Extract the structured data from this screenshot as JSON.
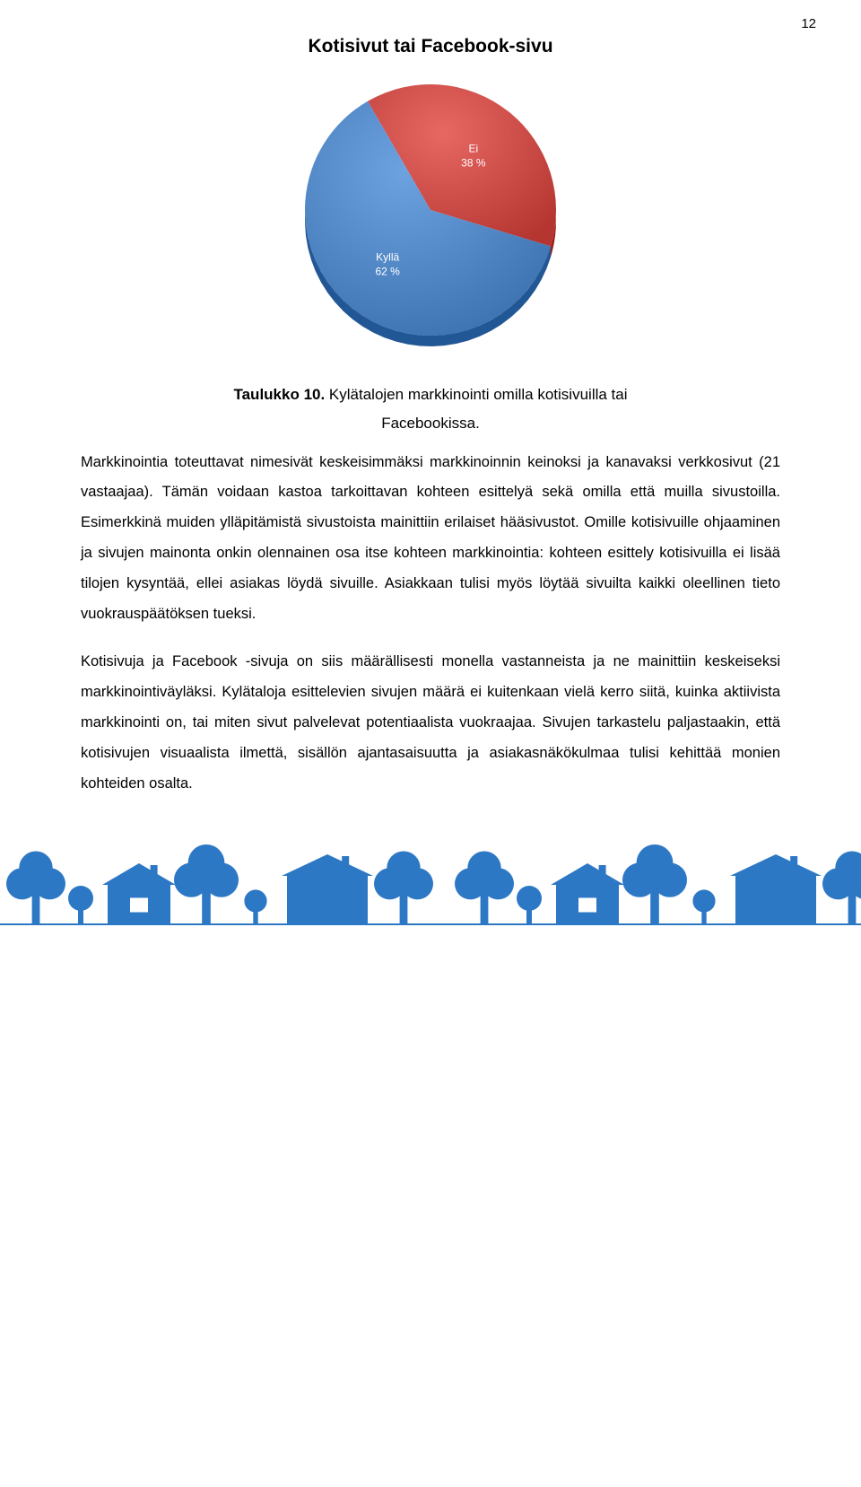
{
  "page_number": "12",
  "chart": {
    "type": "pie",
    "title": "Kotisivut tai Facebook-sivu",
    "background_color": "#ffffff",
    "radius": 140,
    "slices": [
      {
        "label_line1": "Ei",
        "label_line2": "38 %",
        "value": 38,
        "color": "#c44440"
      },
      {
        "label_line1": "Kyllä",
        "label_line2": "62 %",
        "value": 62,
        "color": "#4a7fbd"
      }
    ],
    "label_fontsize": 12,
    "label_color": "#ffffff",
    "start_offset_deg": 30
  },
  "caption": {
    "bold": "Taulukko 10.",
    "text_line1": " Kylätalojen markkinointi omilla kotisivuilla tai",
    "text_line2": "Facebookissa."
  },
  "para1": "Markkinointia toteuttavat nimesivät keskeisimmäksi markkinoinnin keinoksi ja kanavaksi verkkosivut (21 vastaajaa). Tämän voidaan kastoa tarkoittavan kohteen esittelyä sekä omilla että muilla sivustoilla. Esimerkkinä muiden ylläpitämistä sivustoista mainittiin erilaiset hääsivustot. Omille kotisivuille ohjaaminen ja sivujen mainonta onkin olennainen osa itse kohteen markkinointia: kohteen esittely kotisivuilla ei lisää tilojen kysyntää, ellei asiakas löydä sivuille. Asiakkaan tulisi myös löytää sivuilta kaikki oleellinen tieto vuokrauspäätöksen tueksi.",
  "para2": "Kotisivuja ja Facebook -sivuja on siis määrällisesti monella vastanneista ja ne mainittiin keskeiseksi markkinointiväyläksi. Kylätaloja esittelevien sivujen määrä ei kuitenkaan vielä kerro siitä, kuinka aktiivista markkinointi on, tai miten sivut palvelevat potentiaalista vuokraajaa. Sivujen tarkastelu paljastaakin, että kotisivujen visuaalista ilmettä, sisällön ajantasaisuutta ja asiakasnäkökulmaa tulisi kehittää monien kohteiden osalta.",
  "footer_color": "#2d78c5"
}
